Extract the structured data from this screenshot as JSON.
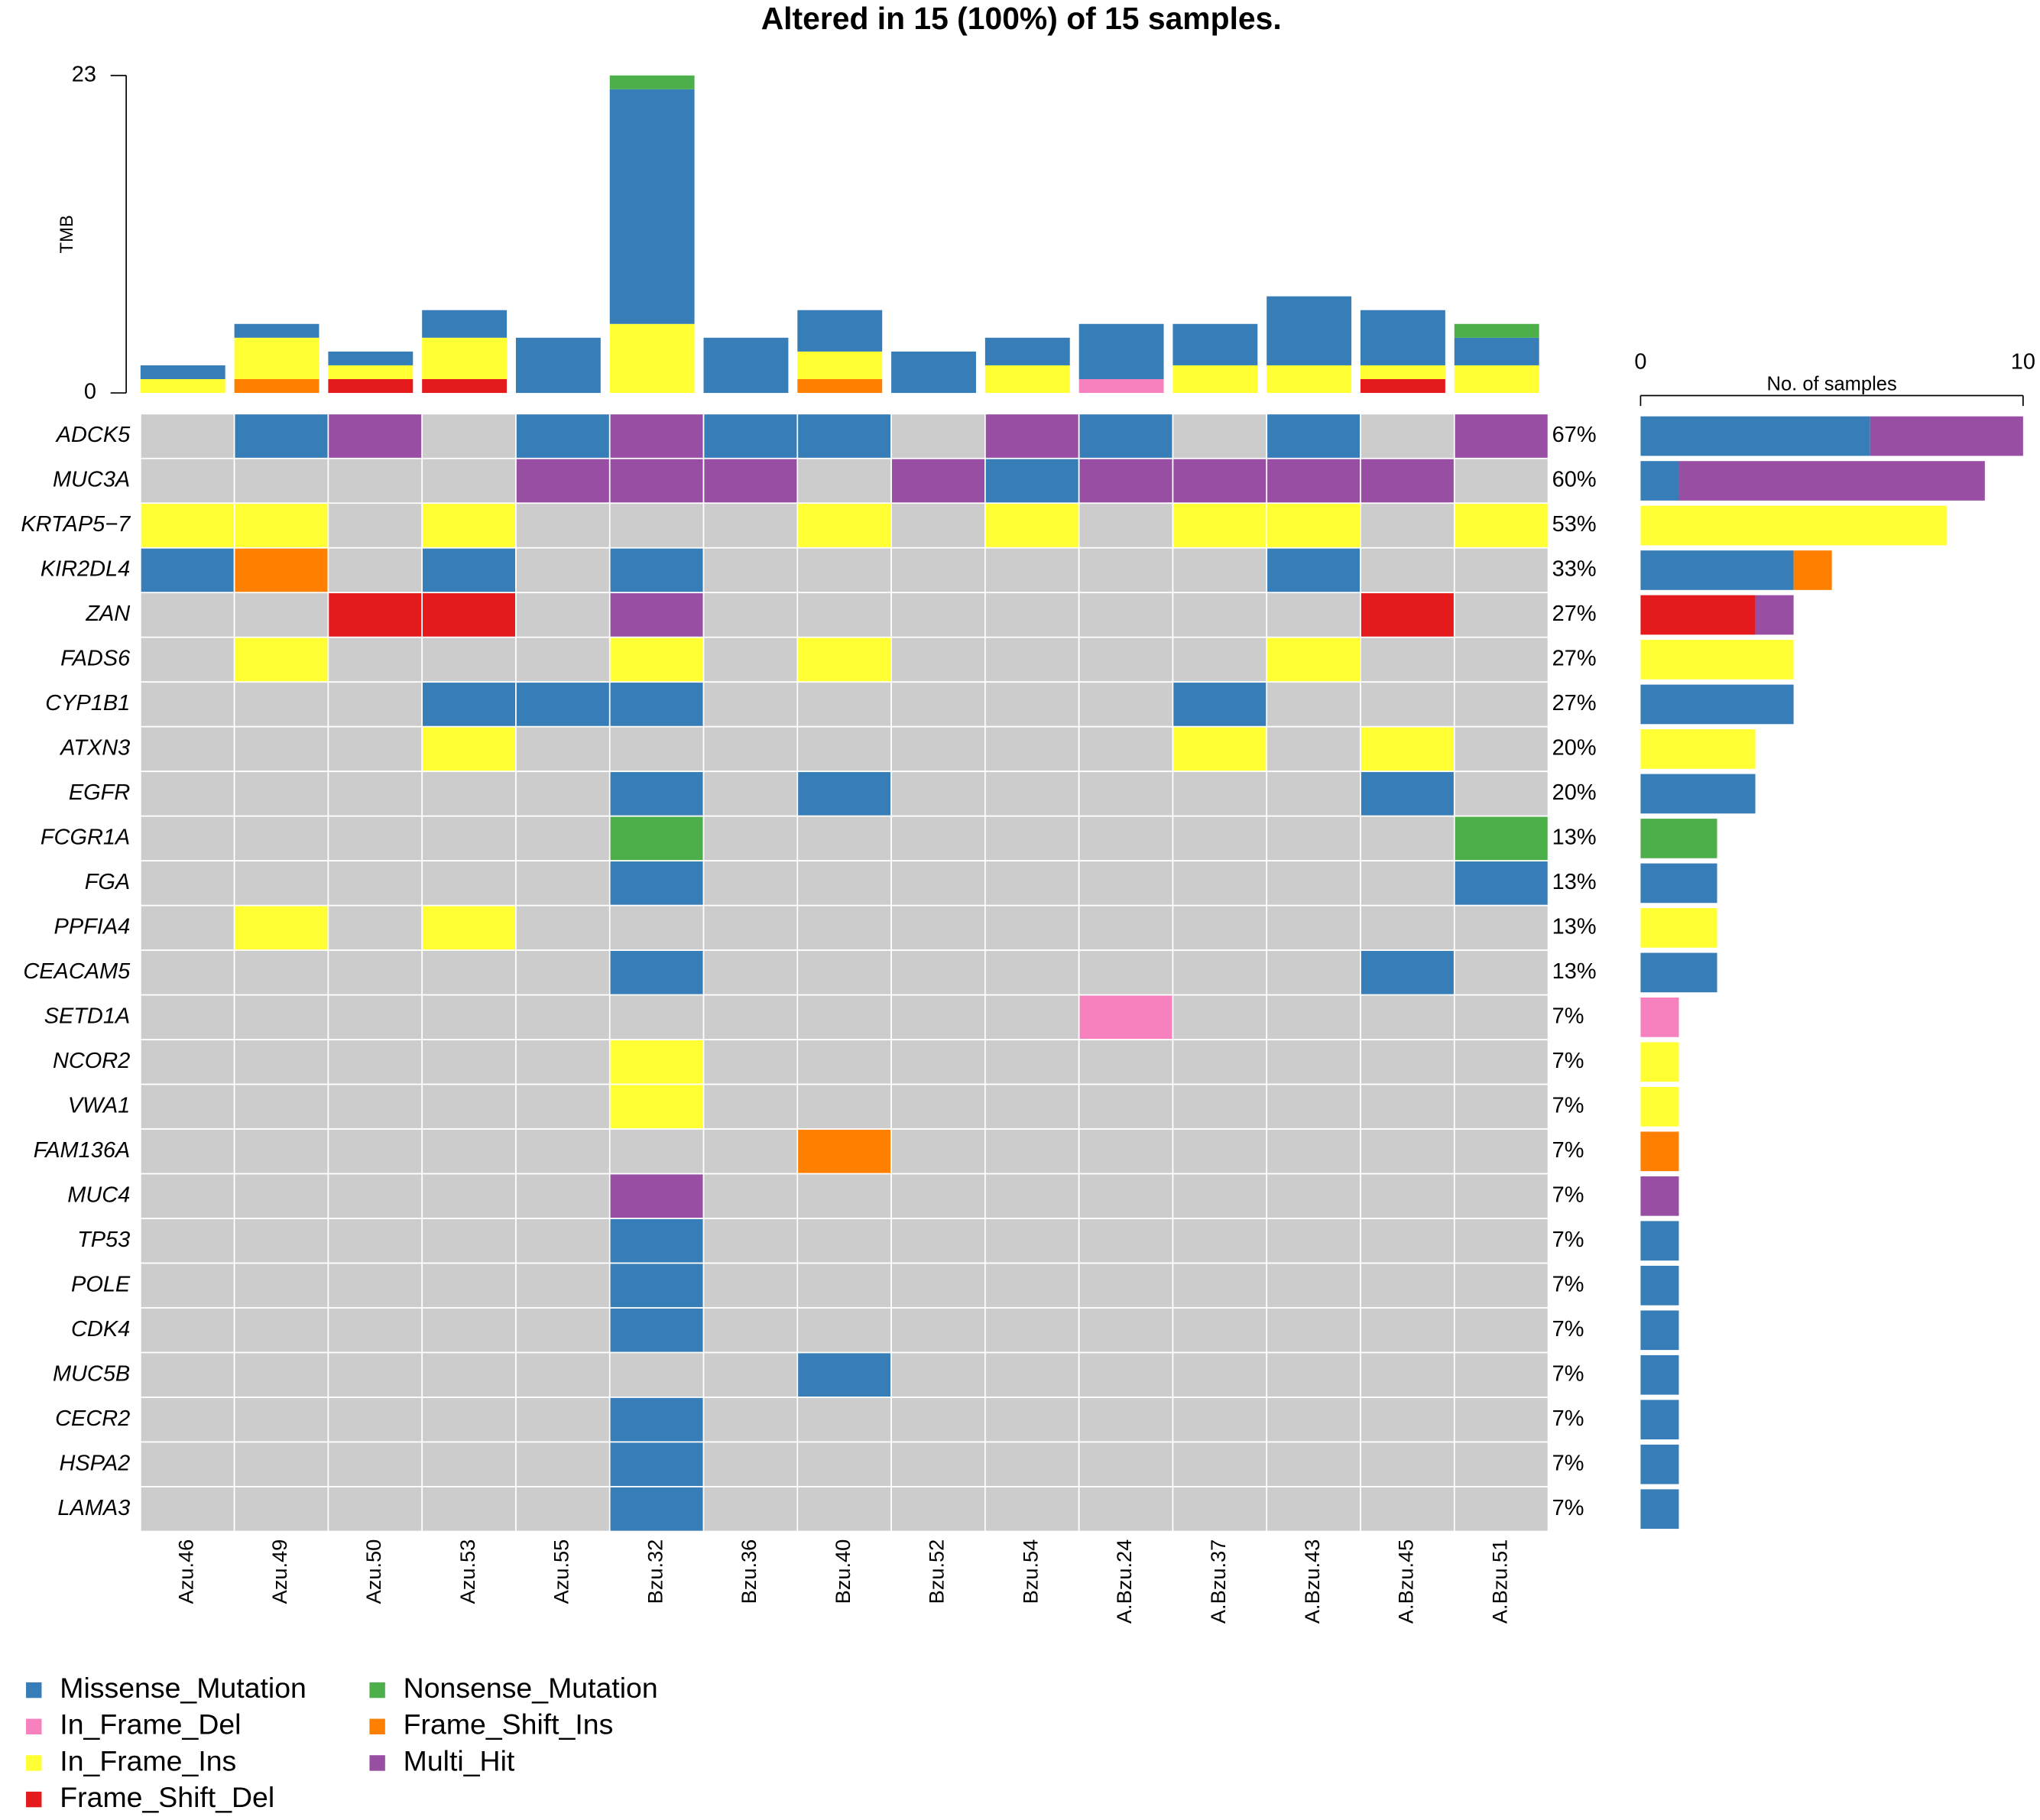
{
  "chart_data": {
    "type": "oncoplot",
    "title": "Altered in 15 (100%) of 15 samples.",
    "samples": [
      "Azu.46",
      "Azu.49",
      "Azu.50",
      "Azu.53",
      "Azu.55",
      "Bzu.32",
      "Bzu.36",
      "Bzu.40",
      "Bzu.52",
      "Bzu.54",
      "A.Bzu.24",
      "A.Bzu.37",
      "A.Bzu.43",
      "A.Bzu.45",
      "A.Bzu.51"
    ],
    "genes": [
      "ADCK5",
      "MUC3A",
      "KRTAP5−7",
      "KIR2DL4",
      "ZAN",
      "FADS6",
      "CYP1B1",
      "ATXN3",
      "EGFR",
      "FCGR1A",
      "FGA",
      "PPFIA4",
      "CEACAM5",
      "SETD1A",
      "NCOR2",
      "VWA1",
      "FAM136A",
      "MUC4",
      "TP53",
      "POLE",
      "CDK4",
      "MUC5B",
      "CECR2",
      "HSPA2",
      "LAMA3"
    ],
    "series": [
      {
        "name": "Missense_Mutation",
        "color": "#377eb8",
        "tmb": [
          1,
          1,
          1,
          2,
          4,
          17,
          4,
          3,
          3,
          2,
          4,
          3,
          5,
          4,
          2
        ]
      },
      {
        "name": "In_Frame_Del",
        "color": "#f781bf",
        "tmb": [
          0,
          0,
          0,
          0,
          0,
          0,
          0,
          0,
          0,
          0,
          1,
          0,
          0,
          0,
          0
        ]
      },
      {
        "name": "In_Frame_Ins",
        "color": "#ffff33",
        "tmb": [
          1,
          3,
          1,
          3,
          0,
          5,
          0,
          2,
          0,
          2,
          0,
          2,
          2,
          1,
          2
        ]
      },
      {
        "name": "Frame_Shift_Del",
        "color": "#e41a1c",
        "tmb": [
          0,
          0,
          1,
          1,
          0,
          0,
          0,
          0,
          0,
          0,
          0,
          0,
          0,
          1,
          0
        ]
      },
      {
        "name": "Nonsense_Mutation",
        "color": "#4daf4a",
        "tmb": [
          0,
          0,
          0,
          0,
          0,
          1,
          0,
          0,
          0,
          0,
          0,
          0,
          0,
          0,
          1
        ]
      },
      {
        "name": "Frame_Shift_Ins",
        "color": "#ff7f00",
        "tmb": [
          0,
          1,
          0,
          0,
          0,
          0,
          0,
          1,
          0,
          0,
          0,
          0,
          0,
          0,
          0
        ]
      },
      {
        "name": "Multi_Hit",
        "color": "#984ea3",
        "tmb": [
          0,
          0,
          0,
          0,
          0,
          0,
          0,
          0,
          0,
          0,
          0,
          0,
          0,
          0,
          0
        ]
      }
    ],
    "matrix": [
      [
        null,
        0,
        6,
        null,
        0,
        6,
        0,
        0,
        null,
        6,
        0,
        null,
        0,
        null,
        6
      ],
      [
        null,
        null,
        null,
        null,
        6,
        6,
        6,
        null,
        6,
        0,
        6,
        6,
        6,
        6,
        null
      ],
      [
        2,
        2,
        null,
        2,
        null,
        null,
        null,
        2,
        null,
        2,
        null,
        2,
        2,
        null,
        2
      ],
      [
        0,
        5,
        null,
        0,
        null,
        0,
        null,
        null,
        null,
        null,
        null,
        null,
        0,
        null,
        null
      ],
      [
        null,
        null,
        3,
        3,
        null,
        6,
        null,
        null,
        null,
        null,
        null,
        null,
        null,
        3,
        null
      ],
      [
        null,
        2,
        null,
        null,
        null,
        2,
        null,
        2,
        null,
        null,
        null,
        null,
        2,
        null,
        null
      ],
      [
        null,
        null,
        null,
        0,
        0,
        0,
        null,
        null,
        null,
        null,
        null,
        0,
        null,
        null,
        null
      ],
      [
        null,
        null,
        null,
        2,
        null,
        null,
        null,
        null,
        null,
        null,
        null,
        2,
        null,
        2,
        null
      ],
      [
        null,
        null,
        null,
        null,
        null,
        0,
        null,
        0,
        null,
        null,
        null,
        null,
        null,
        0,
        null
      ],
      [
        null,
        null,
        null,
        null,
        null,
        4,
        null,
        null,
        null,
        null,
        null,
        null,
        null,
        null,
        4
      ],
      [
        null,
        null,
        null,
        null,
        null,
        0,
        null,
        null,
        null,
        null,
        null,
        null,
        null,
        null,
        0
      ],
      [
        null,
        2,
        null,
        2,
        null,
        null,
        null,
        null,
        null,
        null,
        null,
        null,
        null,
        null,
        null
      ],
      [
        null,
        null,
        null,
        null,
        null,
        0,
        null,
        null,
        null,
        null,
        null,
        null,
        null,
        0,
        null
      ],
      [
        null,
        null,
        null,
        null,
        null,
        null,
        null,
        null,
        null,
        null,
        1,
        null,
        null,
        null,
        null
      ],
      [
        null,
        null,
        null,
        null,
        null,
        2,
        null,
        null,
        null,
        null,
        null,
        null,
        null,
        null,
        null
      ],
      [
        null,
        null,
        null,
        null,
        null,
        2,
        null,
        null,
        null,
        null,
        null,
        null,
        null,
        null,
        null
      ],
      [
        null,
        null,
        null,
        null,
        null,
        null,
        null,
        5,
        null,
        null,
        null,
        null,
        null,
        null,
        null
      ],
      [
        null,
        null,
        null,
        null,
        null,
        6,
        null,
        null,
        null,
        null,
        null,
        null,
        null,
        null,
        null
      ],
      [
        null,
        null,
        null,
        null,
        null,
        0,
        null,
        null,
        null,
        null,
        null,
        null,
        null,
        null,
        null
      ],
      [
        null,
        null,
        null,
        null,
        null,
        0,
        null,
        null,
        null,
        null,
        null,
        null,
        null,
        null,
        null
      ],
      [
        null,
        null,
        null,
        null,
        null,
        0,
        null,
        null,
        null,
        null,
        null,
        null,
        null,
        null,
        null
      ],
      [
        null,
        null,
        null,
        null,
        null,
        null,
        null,
        0,
        null,
        null,
        null,
        null,
        null,
        null,
        null
      ],
      [
        null,
        null,
        null,
        null,
        null,
        0,
        null,
        null,
        null,
        null,
        null,
        null,
        null,
        null,
        null
      ],
      [
        null,
        null,
        null,
        null,
        null,
        0,
        null,
        null,
        null,
        null,
        null,
        null,
        null,
        null,
        null
      ],
      [
        null,
        null,
        null,
        null,
        null,
        0,
        null,
        null,
        null,
        null,
        null,
        null,
        null,
        null,
        null
      ]
    ],
    "frequency": {
      "values": [
        67,
        60,
        53,
        33,
        27,
        27,
        27,
        20,
        20,
        13,
        13,
        13,
        13,
        7,
        7,
        7,
        7,
        7,
        7,
        7,
        7,
        7,
        7,
        7,
        7
      ],
      "value_labels": [
        "67%",
        "60%",
        "53%",
        "33%",
        "27%",
        "27%",
        "27%",
        "20%",
        "20%",
        "13%",
        "13%",
        "13%",
        "13%",
        "7%",
        "7%",
        "7%",
        "7%",
        "7%",
        "7%",
        "7%",
        "7%",
        "7%",
        "7%",
        "7%",
        "7%"
      ]
    },
    "ylabel": "TMB",
    "ylim": [
      0,
      23
    ],
    "yticks": [
      0,
      23
    ],
    "xlabel": "No. of samples",
    "xlim": [
      0,
      10
    ],
    "xticks": [
      0,
      10
    ]
  }
}
